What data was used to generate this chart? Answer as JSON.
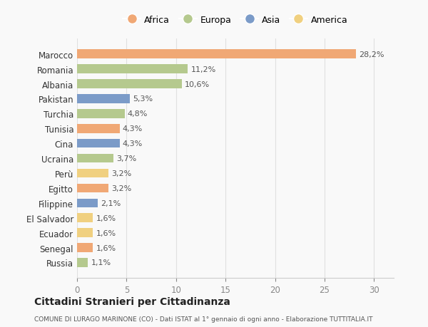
{
  "countries": [
    "Marocco",
    "Romania",
    "Albania",
    "Pakistan",
    "Turchia",
    "Tunisia",
    "Cina",
    "Ucraina",
    "Perù",
    "Egitto",
    "Filippine",
    "El Salvador",
    "Ecuador",
    "Senegal",
    "Russia"
  ],
  "values": [
    28.2,
    11.2,
    10.6,
    5.3,
    4.8,
    4.3,
    4.3,
    3.7,
    3.2,
    3.2,
    2.1,
    1.6,
    1.6,
    1.6,
    1.1
  ],
  "labels": [
    "28,2%",
    "11,2%",
    "10,6%",
    "5,3%",
    "4,8%",
    "4,3%",
    "4,3%",
    "3,7%",
    "3,2%",
    "3,2%",
    "2,1%",
    "1,6%",
    "1,6%",
    "1,6%",
    "1,1%"
  ],
  "continents": [
    "Africa",
    "Europa",
    "Europa",
    "Asia",
    "Europa",
    "Africa",
    "Asia",
    "Europa",
    "America",
    "Africa",
    "Asia",
    "America",
    "America",
    "Africa",
    "Europa"
  ],
  "continent_colors": {
    "Africa": "#F0A875",
    "Europa": "#B5C98E",
    "Asia": "#7B9BC8",
    "America": "#F0D080"
  },
  "legend_order": [
    "Africa",
    "Europa",
    "Asia",
    "America"
  ],
  "xlim": [
    0,
    32
  ],
  "xticks": [
    0,
    5,
    10,
    15,
    20,
    25,
    30
  ],
  "title": "Cittadini Stranieri per Cittadinanza",
  "subtitle": "COMUNE DI LURAGO MARINONE (CO) - Dati ISTAT al 1° gennaio di ogni anno - Elaborazione TUTTITALIA.IT",
  "bg_color": "#f9f9f9",
  "grid_color": "#e0e0e0"
}
